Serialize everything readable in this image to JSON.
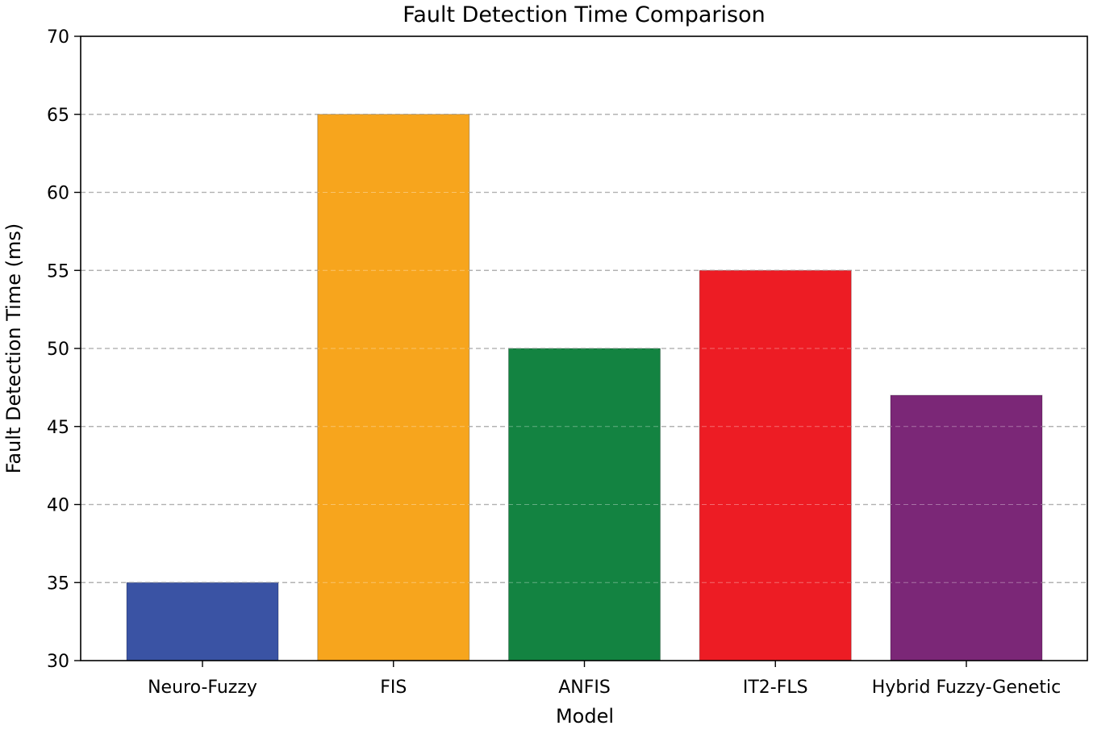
{
  "chart_data": {
    "type": "bar",
    "title": "Fault Detection Time Comparison",
    "xlabel": "Model",
    "ylabel": "Fault Detection Time (ms)",
    "categories": [
      "Neuro-Fuzzy",
      "FIS",
      "ANFIS",
      "IT2-FLS",
      "Hybrid Fuzzy-Genetic"
    ],
    "values": [
      35,
      65,
      50,
      55,
      47
    ],
    "colors": [
      "#3a53a4",
      "#f7a51d",
      "#138341",
      "#ed1c24",
      "#7b2777"
    ],
    "ylim": [
      30,
      70
    ],
    "yticks": [
      30,
      35,
      40,
      45,
      50,
      55,
      60,
      65,
      70
    ],
    "grid": "horizontal dashed",
    "grid_color": "#888888"
  }
}
